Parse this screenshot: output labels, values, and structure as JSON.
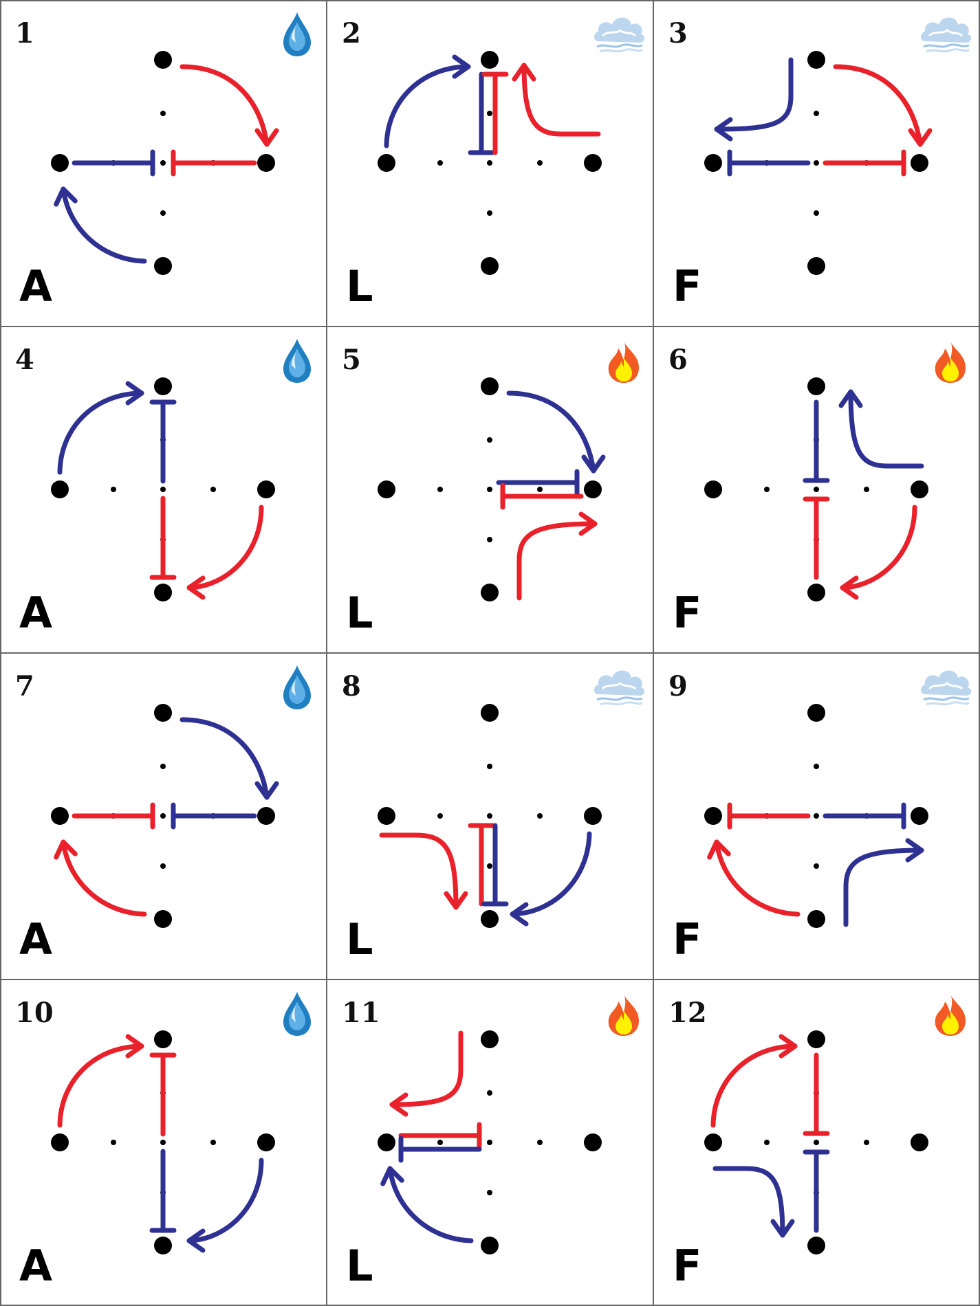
{
  "colors": {
    "red": "#e8212b",
    "blue": "#2e3192",
    "dot": "#000000",
    "grid": "#666666",
    "water": "#1f7fc0",
    "cloud": "#bcd6ee",
    "fire_outer": "#f15a24",
    "fire_inner": "#fff200"
  },
  "cells": [
    {
      "number": "1",
      "letter": "A",
      "icon": "water-drop-icon"
    },
    {
      "number": "2",
      "letter": "L",
      "icon": "cloud-icon"
    },
    {
      "number": "3",
      "letter": "F",
      "icon": "cloud-icon"
    },
    {
      "number": "4",
      "letter": "A",
      "icon": "water-drop-icon"
    },
    {
      "number": "5",
      "letter": "L",
      "icon": "fire-icon"
    },
    {
      "number": "6",
      "letter": "F",
      "icon": "fire-icon"
    },
    {
      "number": "7",
      "letter": "A",
      "icon": "water-drop-icon"
    },
    {
      "number": "8",
      "letter": "L",
      "icon": "cloud-icon"
    },
    {
      "number": "9",
      "letter": "F",
      "icon": "cloud-icon"
    },
    {
      "number": "10",
      "letter": "A",
      "icon": "water-drop-icon"
    },
    {
      "number": "11",
      "letter": "L",
      "icon": "fire-icon"
    },
    {
      "number": "12",
      "letter": "F",
      "icon": "fire-icon"
    }
  ]
}
